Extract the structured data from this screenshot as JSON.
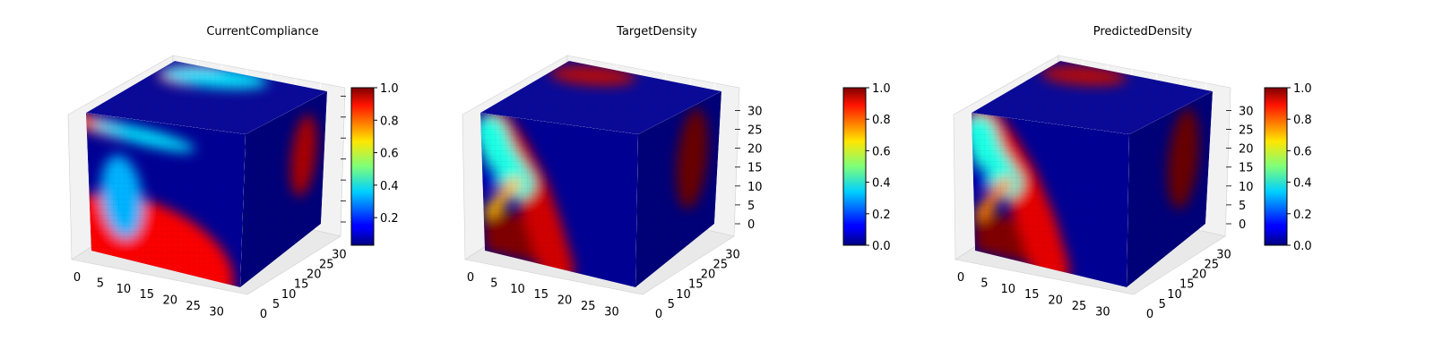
{
  "chart_data": [
    {
      "type": "heatmap",
      "subtype": "3d-voxel-cube",
      "title": "CurrentCompliance",
      "colormap": "jet",
      "colorbar": {
        "range": [
          0.03,
          1.0
        ],
        "ticks": [
          0.2,
          0.4,
          0.6,
          0.8,
          1.0
        ],
        "tick_labels": [
          "0.2",
          "0.4",
          "0.6",
          "0.8",
          "1.0"
        ]
      },
      "x_ticks": [
        0,
        5,
        10,
        15,
        20,
        25,
        30
      ],
      "y_ticks": [
        0,
        5,
        10,
        15,
        20,
        25,
        30
      ],
      "z_ticks": [],
      "z_tick_labels_shown": false,
      "range": [
        0,
        32
      ],
      "grid": true,
      "faces": {
        "front": [
          {
            "shape": "ellipse",
            "cx": 0.05,
            "cy": 0.93,
            "rx": 0.55,
            "ry": 0.06,
            "value": 0.8
          },
          {
            "shape": "ellipse",
            "cx": 0.38,
            "cy": 0.93,
            "rx": 0.35,
            "ry": 0.06,
            "value": 0.35
          },
          {
            "shape": "ellipse",
            "cx": 0.33,
            "cy": 0.05,
            "rx": 0.63,
            "ry": 0.42,
            "value": 0.88
          },
          {
            "shape": "ellipse",
            "cx": 0.22,
            "cy": 0.45,
            "rx": 0.14,
            "ry": 0.3,
            "value": 0.3
          }
        ],
        "right": [
          {
            "shape": "ellipse",
            "cx": 0.75,
            "cy": 0.55,
            "rx": 0.16,
            "ry": 0.26,
            "value": 0.92
          }
        ],
        "top": [
          {
            "shape": "ellipse",
            "cx": 0.22,
            "cy": 0.82,
            "rx": 0.2,
            "ry": 0.18,
            "value": 0.82
          },
          {
            "shape": "ellipse",
            "cx": 0.35,
            "cy": 0.82,
            "rx": 0.32,
            "ry": 0.16,
            "value": 0.35
          }
        ]
      }
    },
    {
      "type": "heatmap",
      "subtype": "3d-voxel-cube",
      "title": "TargetDensity",
      "colormap": "jet",
      "colorbar": {
        "range": [
          0.0,
          1.0
        ],
        "ticks": [
          0.0,
          0.2,
          0.4,
          0.6,
          0.8,
          1.0
        ],
        "tick_labels": [
          "0.0",
          "0.2",
          "0.4",
          "0.6",
          "0.8",
          "1.0"
        ]
      },
      "x_ticks": [
        0,
        5,
        10,
        15,
        20,
        25,
        30
      ],
      "y_ticks": [
        0,
        5,
        10,
        15,
        20,
        25,
        30
      ],
      "z_ticks": [
        0,
        5,
        10,
        15,
        20,
        25,
        30
      ],
      "z_tick_labels_shown": true,
      "range": [
        0,
        32
      ],
      "grid": true,
      "faces": {
        "front": [
          {
            "shape": "rect",
            "x0": 0.0,
            "x1": 0.42,
            "y0": 0.0,
            "y1": 0.32,
            "value": 1.0
          },
          {
            "shape": "band",
            "points": [
              [
                0.48,
                0.0
              ],
              [
                0.4,
                0.3
              ],
              [
                0.32,
                0.55
              ],
              [
                0.2,
                0.78
              ],
              [
                0.1,
                0.92
              ]
            ],
            "width": 0.22,
            "value": 0.92
          },
          {
            "shape": "band",
            "points": [
              [
                0.24,
                0.55
              ],
              [
                0.12,
                0.72
              ],
              [
                0.06,
                0.88
              ]
            ],
            "width": 0.2,
            "value": 0.4
          },
          {
            "shape": "band",
            "points": [
              [
                0.05,
                0.3
              ],
              [
                0.15,
                0.45
              ],
              [
                0.22,
                0.55
              ]
            ],
            "width": 0.08,
            "value": 0.7
          },
          {
            "shape": "ellipse",
            "cx": 0.06,
            "cy": 0.55,
            "rx": 0.05,
            "ry": 0.1,
            "value": 0.08
          }
        ],
        "right": [
          {
            "shape": "ellipse",
            "cx": 0.7,
            "cy": 0.55,
            "rx": 0.2,
            "ry": 0.32,
            "value": 1.0
          }
        ],
        "top": [
          {
            "shape": "ellipse",
            "cx": 0.25,
            "cy": 0.82,
            "rx": 0.26,
            "ry": 0.16,
            "value": 0.95
          }
        ]
      }
    },
    {
      "type": "heatmap",
      "subtype": "3d-voxel-cube",
      "title": "PredictedDensity",
      "colormap": "jet",
      "colorbar": {
        "range": [
          0.0,
          1.0
        ],
        "ticks": [
          0.0,
          0.2,
          0.4,
          0.6,
          0.8,
          1.0
        ],
        "tick_labels": [
          "0.0",
          "0.2",
          "0.4",
          "0.6",
          "0.8",
          "1.0"
        ]
      },
      "x_ticks": [
        0,
        5,
        10,
        15,
        20,
        25,
        30
      ],
      "y_ticks": [
        0,
        5,
        10,
        15,
        20,
        25,
        30
      ],
      "z_ticks": [
        0,
        5,
        10,
        15,
        20,
        25,
        30
      ],
      "z_tick_labels_shown": true,
      "range": [
        0,
        32
      ],
      "grid": true,
      "faces": {
        "front": [
          {
            "shape": "rect",
            "x0": 0.0,
            "x1": 0.45,
            "y0": 0.0,
            "y1": 0.3,
            "value": 1.0
          },
          {
            "shape": "band",
            "points": [
              [
                0.5,
                0.0
              ],
              [
                0.42,
                0.3
              ],
              [
                0.3,
                0.6
              ],
              [
                0.18,
                0.8
              ],
              [
                0.08,
                0.93
              ]
            ],
            "width": 0.24,
            "value": 0.9
          },
          {
            "shape": "band",
            "points": [
              [
                0.22,
                0.55
              ],
              [
                0.1,
                0.72
              ],
              [
                0.05,
                0.88
              ]
            ],
            "width": 0.2,
            "value": 0.4
          },
          {
            "shape": "band",
            "points": [
              [
                0.05,
                0.28
              ],
              [
                0.15,
                0.45
              ],
              [
                0.22,
                0.55
              ]
            ],
            "width": 0.08,
            "value": 0.75
          },
          {
            "shape": "ellipse",
            "cx": 0.06,
            "cy": 0.55,
            "rx": 0.05,
            "ry": 0.1,
            "value": 0.08
          }
        ],
        "right": [
          {
            "shape": "ellipse",
            "cx": 0.7,
            "cy": 0.55,
            "rx": 0.2,
            "ry": 0.32,
            "value": 1.0
          }
        ],
        "top": [
          {
            "shape": "ellipse",
            "cx": 0.25,
            "cy": 0.82,
            "rx": 0.26,
            "ry": 0.16,
            "value": 0.95
          }
        ]
      }
    }
  ]
}
